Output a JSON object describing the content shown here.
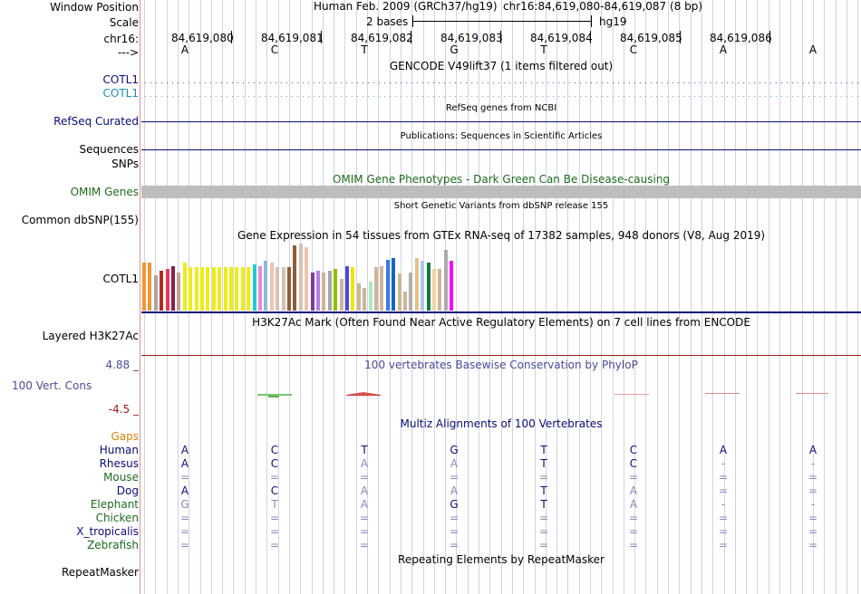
{
  "header": {
    "window_position_label": "Window Position",
    "scale_label": "Scale",
    "chrom_label": "chr16:",
    "strand_label": "--->",
    "assembly": "Human Feb. 2009 (GRCh37/hg19)",
    "position": "chr16:84,619,080-84,619,087 (8 bp)",
    "scale_text": "2 bases",
    "scale_db": "hg19",
    "coords": [
      "84,619,080",
      "84,619,081",
      "84,619,082",
      "84,619,083",
      "84,619,084",
      "84,619,085",
      "84,619,086"
    ],
    "bases": [
      "A",
      "C",
      "T",
      "G",
      "T",
      "C",
      "A",
      "A"
    ]
  },
  "tracks": {
    "gencode_title": "GENCODE V49lift37 (1 items filtered out)",
    "cotl1_a": "COTL1",
    "cotl1_b": "COTL1",
    "refseq_label": "RefSeq Curated",
    "refseq_title": "RefSeq genes from NCBI",
    "pub_title": "Publications: Sequences in Scientific Articles",
    "sequences_label": "Sequences",
    "snps_label": "SNPs",
    "omim_title": "OMIM Gene Phenotypes - Dark Green Can Be Disease-causing",
    "omim_label": "OMIM Genes",
    "dbsnp_title": "Short Genetic Variants from dbSNP release 155",
    "dbsnp_label": "Common dbSNP(155)",
    "gtex_title": "Gene Expression in 54 tissues from GTEx RNA-seq of 17382 samples, 948 donors (V8, Aug 2019)",
    "gtex_label": "COTL1",
    "h3k27_title": "H3K27Ac Mark (Often Found Near Active Regulatory Elements) on 7 cell lines from ENCODE",
    "h3k27_label": "Layered H3K27Ac",
    "phylop_max": "4.88 _",
    "phylop_label": "100 Vert. Cons",
    "phylop_min": "-4.5 _",
    "phylop_title": "100 vertebrates Basewise Conservation by PhyloP",
    "multiz_title": "Multiz Alignments of 100 Vertebrates",
    "gaps_label": "Gaps",
    "repeat_title": "Repeating Elements by RepeatMasker",
    "repeat_label": "RepeatMasker"
  },
  "colors": {
    "gencode_a": "#0c0c78",
    "gencode_b": "#1a8cbf",
    "omim_green": "#1d6b1d",
    "phylop_blue": "#4b4b96",
    "phylop_red": "#a31a1a",
    "gaps_orange": "#d4820f",
    "h3k27_line": "#9b1c1c"
  },
  "multiz": {
    "species": [
      {
        "name": "Human",
        "color": "#0c0c78",
        "seq": [
          "A",
          "C",
          "T",
          "G",
          "T",
          "C",
          "A",
          "A"
        ]
      },
      {
        "name": "Rhesus",
        "color": "#0c0c78",
        "seq": [
          "A",
          "C",
          "A",
          "A",
          "T",
          "C",
          "-",
          "-"
        ]
      },
      {
        "name": "Mouse",
        "color": "#1d6b1d",
        "seq": [
          "=",
          "=",
          "=",
          "=",
          "=",
          "=",
          "=",
          "="
        ]
      },
      {
        "name": "Dog",
        "color": "#0c0c78",
        "seq": [
          "A",
          "C",
          "A",
          "A",
          "T",
          "A",
          "=",
          "="
        ]
      },
      {
        "name": "Elephant",
        "color": "#1d6b1d",
        "seq": [
          "G",
          "T",
          "A",
          "G",
          "T",
          "A",
          "-",
          "-"
        ]
      },
      {
        "name": "Chicken",
        "color": "#1d6b1d",
        "seq": [
          "=",
          "=",
          "=",
          "=",
          "=",
          "=",
          "=",
          "="
        ]
      },
      {
        "name": "X_tropicalis",
        "color": "#0c0c78",
        "seq": [
          "=",
          "=",
          "=",
          "=",
          "=",
          "=",
          "=",
          "="
        ]
      },
      {
        "name": "Zebrafish",
        "color": "#1d6b1d",
        "seq": [
          "=",
          "=",
          "=",
          "=",
          "=",
          "=",
          "=",
          "="
        ]
      }
    ]
  },
  "gtex": {
    "tissue_expression": [
      30,
      30,
      22,
      25,
      26,
      28,
      24,
      30,
      27,
      27,
      27,
      27,
      27,
      27,
      27,
      27,
      27,
      27,
      27,
      29,
      28,
      31,
      30,
      27,
      27,
      27,
      41,
      42,
      40,
      24,
      25,
      24,
      25,
      26,
      20,
      28,
      27,
      17,
      14,
      18,
      27,
      28,
      32,
      33,
      23,
      12,
      24,
      33,
      31,
      30,
      26,
      26,
      38,
      31
    ],
    "tissue_colors": [
      "#f29634",
      "#f29634",
      "#a6a6a6",
      "#b62a1e",
      "#e33a5c",
      "#8a2045",
      "#bfa493",
      "#ecec1c",
      "#ecec1c",
      "#ecec1c",
      "#ecec1c",
      "#ecec1c",
      "#ecec1c",
      "#ecec1c",
      "#ecec1c",
      "#ecec1c",
      "#ecec1c",
      "#ecec1c",
      "#ecec1c",
      "#1bcfcf",
      "#ec86e0",
      "#8fb8db",
      "#efc4ab",
      "#d6c2b5",
      "#d6c2b5",
      "#8c5e3c",
      "#8c5e3c",
      "#d6c2b5",
      "#efc4ab",
      "#7d3c98",
      "#b37fe0",
      "#cdb59a",
      "#a6a6a6",
      "#8fbf00",
      "#cdb59a",
      "#4b4bd6",
      "#f1e400",
      "#cdb59a",
      "#cdb59a",
      "#a8ebc2",
      "#cdb59a",
      "#cdb59a",
      "#3c7ae6",
      "#1466c4",
      "#cdb59a",
      "#cdb59a",
      "#b0b0b0",
      "#e8c088",
      "#aac8e8",
      "#137a3a",
      "#f2d2a5",
      "#cdb59a",
      "#aaaaaa",
      "#ff00ff"
    ]
  }
}
